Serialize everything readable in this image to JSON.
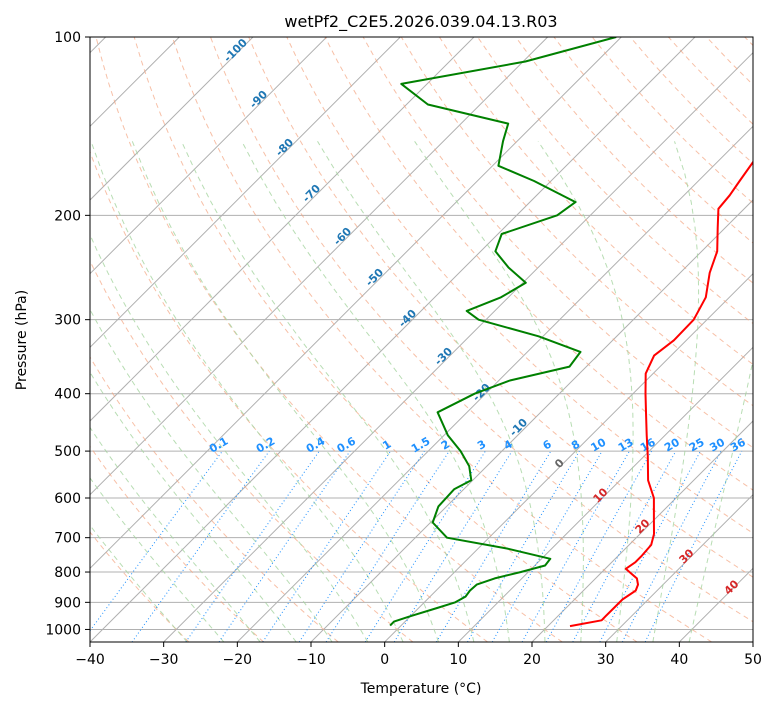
{
  "chart_data": {
    "type": "line",
    "title": "wetPf2_C2E5.2026.039.04.13.R03",
    "xlabel": "Temperature (°C)",
    "ylabel": "Pressure (hPa)",
    "xlim": [
      -40,
      50
    ],
    "ylim": [
      1050,
      100
    ],
    "yscale": "log",
    "skew": true,
    "x_ticks": [
      -40,
      -30,
      -20,
      -10,
      0,
      10,
      20,
      30,
      40,
      50
    ],
    "y_ticks": [
      100,
      200,
      300,
      400,
      500,
      600,
      700,
      800,
      900,
      1000
    ],
    "grid": true,
    "series": [
      {
        "color": "#ff0000",
        "p": [
          987,
          965,
          950,
          920,
          890,
          860,
          840,
          820,
          805,
          790,
          770,
          750,
          720,
          690,
          650,
          600,
          560,
          510,
          470,
          430,
          400,
          370,
          345,
          325,
          300,
          275,
          250,
          230,
          210,
          195,
          185,
          175,
          160,
          150,
          140,
          130,
          122,
          115,
          108,
          100
        ],
        "x": [
          23,
          26.5,
          26.5,
          26.5,
          26.5,
          27.1,
          26.6,
          25.6,
          24.2,
          22.8,
          23.2,
          23.2,
          23.0,
          21.9,
          19.8,
          17.0,
          13.8,
          10.5,
          7.5,
          4.3,
          1.7,
          -1.0,
          -2.3,
          -1.7,
          -1.8,
          -3.2,
          -6.0,
          -7.9,
          -11.0,
          -13.5,
          -13.8,
          -14.4,
          -15.3,
          -15.1,
          -15.8,
          -17.0,
          -18.4,
          -20.6,
          -23.0,
          -25.2
        ]
      },
      {
        "color": "#008000",
        "p": [
          985,
          970,
          950,
          920,
          900,
          880,
          860,
          840,
          820,
          800,
          780,
          760,
          730,
          700,
          660,
          620,
          580,
          560,
          530,
          500,
          470,
          430,
          400,
          380,
          360,
          340,
          320,
          300,
          290,
          275,
          260,
          245,
          230,
          215,
          200,
          190,
          175,
          165,
          150,
          140,
          130,
          120,
          110,
          100
        ],
        "x": [
          -1.5,
          -1.5,
          0,
          2.5,
          4.2,
          4.8,
          4.6,
          4.7,
          6.3,
          9.0,
          11.4,
          11.2,
          3.9,
          -5.7,
          -9.7,
          -11.1,
          -11.3,
          -10.2,
          -12.4,
          -15.6,
          -19.5,
          -24.0,
          -21.5,
          -18.5,
          -12.3,
          -12.8,
          -20.6,
          -31.0,
          -33.8,
          -31.0,
          -29.6,
          -34.0,
          -38.0,
          -39.5,
          -34.5,
          -33.8,
          -42.3,
          -49.2,
          -51.9,
          -53.6,
          -67.1,
          -73.5,
          -59.7,
          -50.7
        ]
      }
    ],
    "dry_adiabat_labels": [
      "-100",
      "-90",
      "-80",
      "-70",
      "-60",
      "-50",
      "-40",
      "-30",
      "-20",
      "-10"
    ],
    "mixing_ratio_labels": [
      "0.1",
      "0.2",
      "0.4",
      "0.6",
      "1",
      "1.5",
      "2",
      "3",
      "4",
      "6",
      "8",
      "10",
      "13",
      "16",
      "20",
      "25",
      "30",
      "36"
    ],
    "dry_adiabat_extra_labels": [
      "0",
      "10",
      "20",
      "30",
      "40"
    ]
  }
}
